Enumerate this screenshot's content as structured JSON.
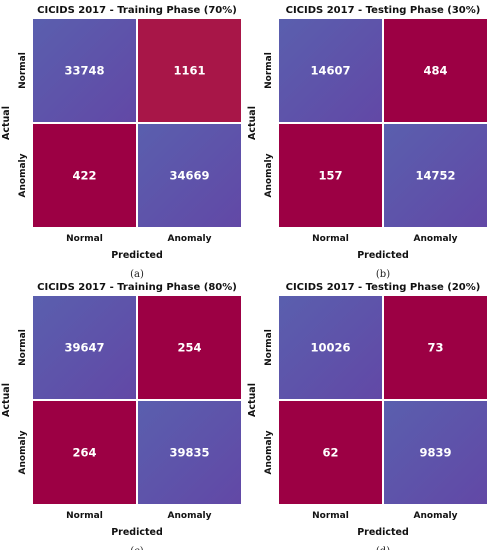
{
  "colors": {
    "low": "#9c0044",
    "mid": "#a81648",
    "high_a": "#5a5fae",
    "high_b": "#6248a6",
    "text": "#ffffff"
  },
  "chart_data": [
    {
      "type": "heatmap",
      "title": "CICIDS 2017 - Training Phase (70%)",
      "xlabel": "Predicted",
      "ylabel": "Actual",
      "x_categories": [
        "Normal",
        "Anomaly"
      ],
      "y_categories": [
        "Normal",
        "Anomaly"
      ],
      "values": [
        [
          33748,
          1161
        ],
        [
          422,
          34669
        ]
      ],
      "caption": "(a)"
    },
    {
      "type": "heatmap",
      "title": "CICIDS 2017 - Testing Phase (30%)",
      "xlabel": "Predicted",
      "ylabel": "Actual",
      "x_categories": [
        "Normal",
        "Anomaly"
      ],
      "y_categories": [
        "Normal",
        "Anomaly"
      ],
      "values": [
        [
          14607,
          484
        ],
        [
          157,
          14752
        ]
      ],
      "caption": "(b)"
    },
    {
      "type": "heatmap",
      "title": "CICIDS 2017 - Training Phase (80%)",
      "xlabel": "Predicted",
      "ylabel": "Actual",
      "x_categories": [
        "Normal",
        "Anomaly"
      ],
      "y_categories": [
        "Normal",
        "Anomaly"
      ],
      "values": [
        [
          39647,
          254
        ],
        [
          264,
          39835
        ]
      ],
      "caption": "(c)"
    },
    {
      "type": "heatmap",
      "title": "CICIDS 2017 - Testing Phase (20%)",
      "xlabel": "Predicted",
      "ylabel": "Actual",
      "x_categories": [
        "Normal",
        "Anomaly"
      ],
      "y_categories": [
        "Normal",
        "Anomaly"
      ],
      "values": [
        [
          10026,
          73
        ],
        [
          62,
          9839
        ]
      ],
      "caption": "(d)"
    }
  ]
}
